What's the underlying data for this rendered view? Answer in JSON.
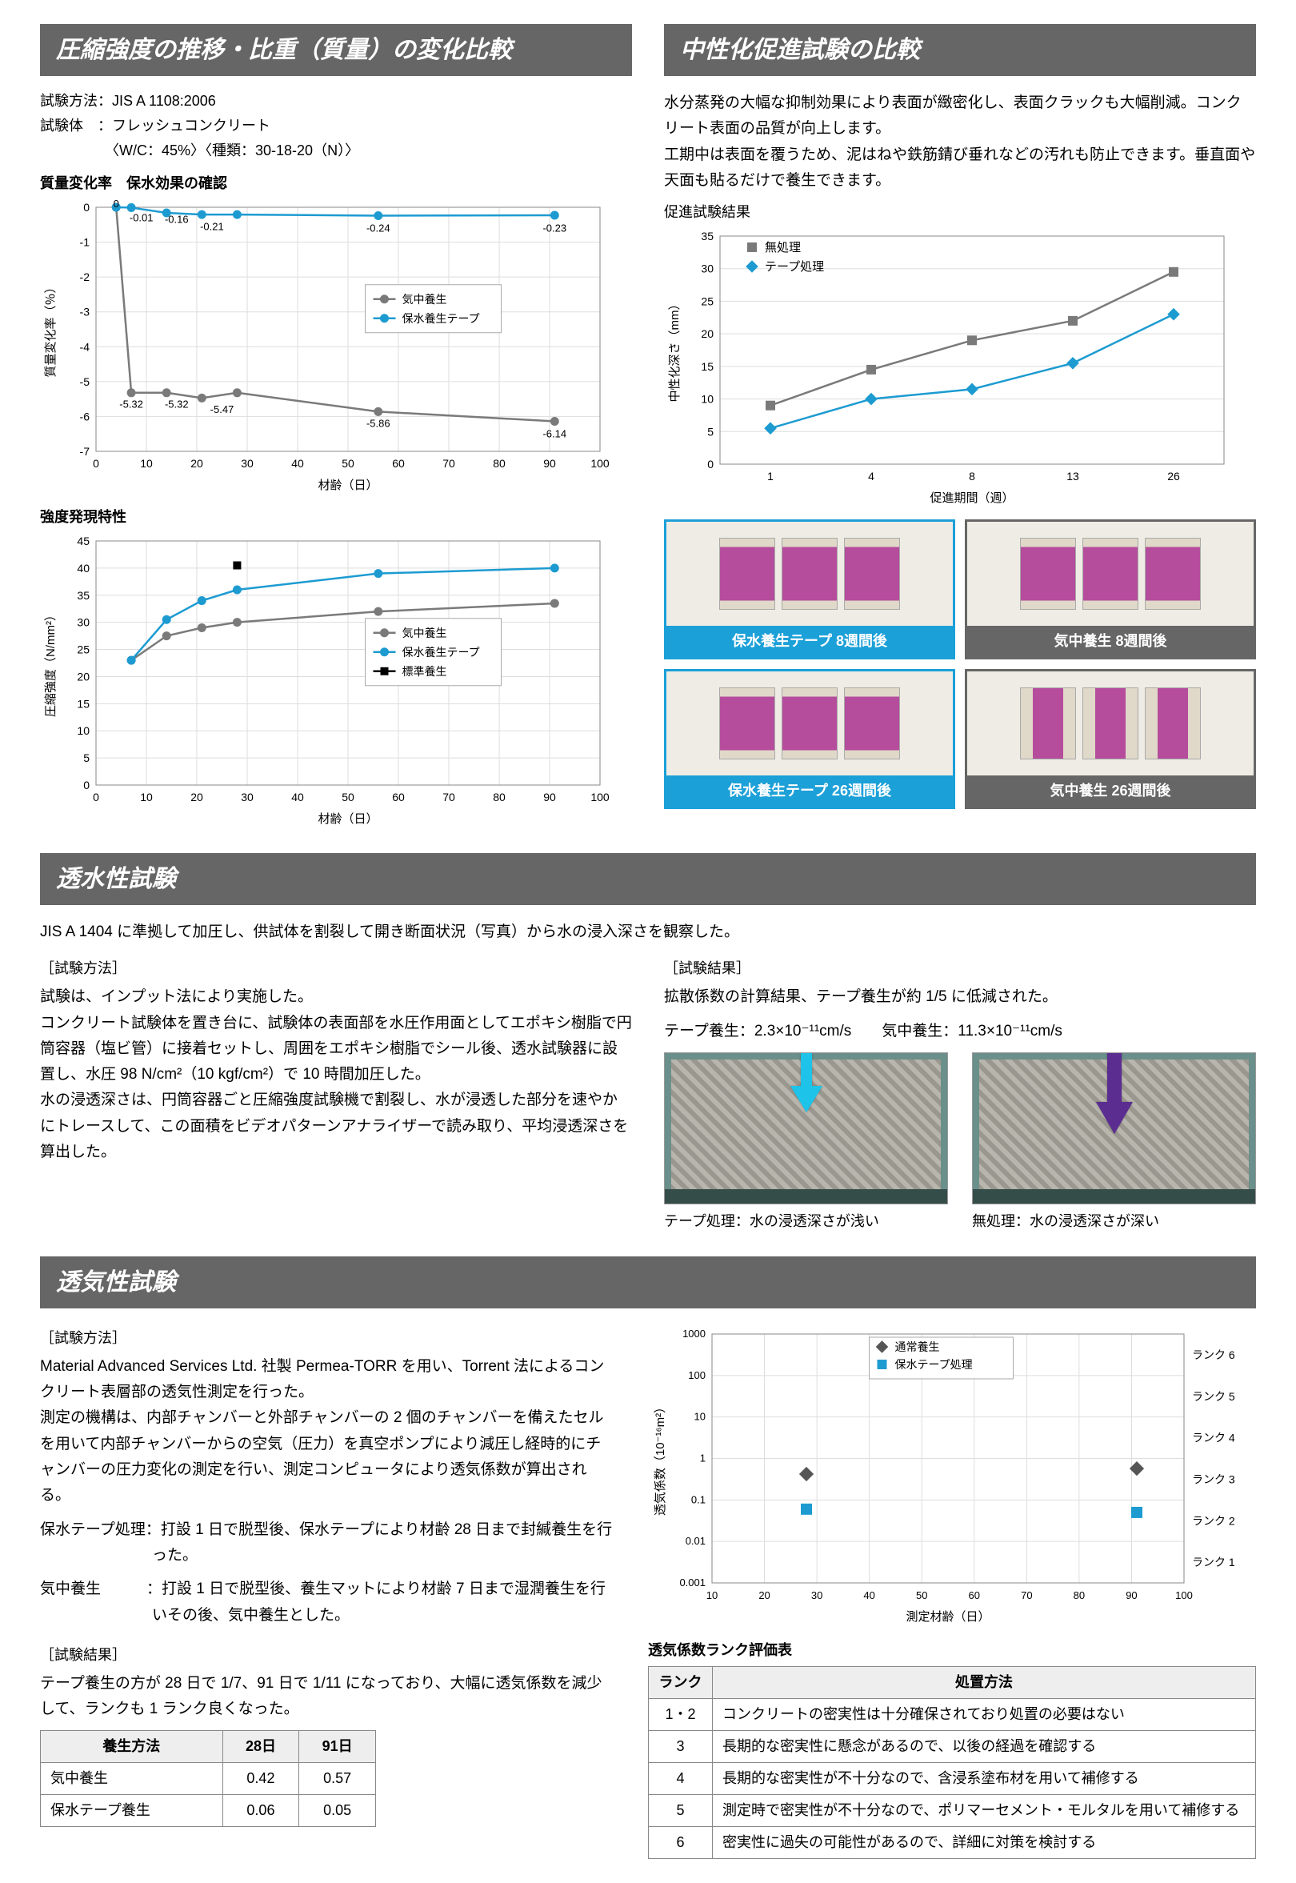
{
  "colors": {
    "header_bg": "#666666",
    "header_text": "#ffffff",
    "accent_blue": "#1ca0d8",
    "series_gray": "#7a7a7a",
    "series_blue": "#1d9bd1",
    "series_black": "#000000",
    "series_cyan": "#1dc3e8",
    "series_purple": "#5b2d91",
    "grid": "#cccccc",
    "axis": "#000000",
    "bg": "#ffffff"
  },
  "s1": {
    "header": "圧縮強度の推移・比重（質量）の変化比較",
    "info1": "試験方法：JIS A 1108:2006",
    "info2": "試験体　：フレッシュコンクリート",
    "info3": "　　　　　〈W/C：45%〉〈種類：30-18-20（N）〉",
    "chart_a": {
      "title": "質量変化率　保水効果の確認",
      "type": "line",
      "xlabel": "材齢（日）",
      "ylabel": "質量変化率（％）",
      "xlim": [
        0,
        100
      ],
      "ylim": [
        -7,
        0
      ],
      "xticks": [
        0,
        10,
        20,
        30,
        40,
        50,
        60,
        70,
        80,
        90,
        100
      ],
      "yticks": [
        0,
        -1,
        -2,
        -3,
        -4,
        -5,
        -6,
        -7
      ],
      "legend": [
        "気中養生",
        "保水養生テープ"
      ],
      "legend_pos": "right-mid",
      "series": {
        "air": {
          "x": [
            4,
            7,
            14,
            21,
            28,
            56,
            91
          ],
          "y": [
            0,
            -5.32,
            -5.32,
            -5.47,
            -5.32,
            -5.86,
            -6.14
          ],
          "color": "#7a7a7a",
          "marker": "circle"
        },
        "tape": {
          "x": [
            4,
            7,
            14,
            21,
            28,
            56,
            91
          ],
          "y": [
            0,
            -0.01,
            -0.16,
            -0.21,
            -0.21,
            -0.24,
            -0.23
          ],
          "color": "#1d9bd1",
          "marker": "circle"
        }
      },
      "data_labels": [
        {
          "x": 4,
          "y": 0,
          "t": "0"
        },
        {
          "x": 9,
          "y": -0.4,
          "t": "-0.01"
        },
        {
          "x": 16,
          "y": -0.45,
          "t": "-0.16"
        },
        {
          "x": 23,
          "y": -0.65,
          "t": "-0.21"
        },
        {
          "x": 56,
          "y": -0.7,
          "t": "-0.24"
        },
        {
          "x": 91,
          "y": -0.7,
          "t": "-0.23"
        },
        {
          "x": 7,
          "y": -5.75,
          "t": "-5.32"
        },
        {
          "x": 16,
          "y": -5.75,
          "t": "-5.32"
        },
        {
          "x": 25,
          "y": -5.9,
          "t": "-5.47"
        },
        {
          "x": 56,
          "y": -6.3,
          "t": "-5.86"
        },
        {
          "x": 91,
          "y": -6.6,
          "t": "-6.14"
        }
      ],
      "fontsize_label": 15,
      "fontsize_tick": 14
    },
    "chart_b": {
      "title": "強度発現特性",
      "type": "line",
      "xlabel": "材齢（日）",
      "ylabel": "圧縮強度（N/mm²）",
      "xlim": [
        0,
        100
      ],
      "ylim": [
        0,
        45
      ],
      "xticks": [
        0,
        10,
        20,
        30,
        40,
        50,
        60,
        70,
        80,
        90,
        100
      ],
      "yticks": [
        0,
        5,
        10,
        15,
        20,
        25,
        30,
        35,
        40,
        45
      ],
      "legend": [
        "気中養生",
        "保水養生テープ",
        "標準養生"
      ],
      "legend_pos": "right-mid",
      "series": {
        "air": {
          "x": [
            7,
            14,
            21,
            28,
            56,
            91
          ],
          "y": [
            23,
            27.5,
            29,
            30,
            32,
            33.5
          ],
          "color": "#7a7a7a",
          "marker": "circle"
        },
        "tape": {
          "x": [
            7,
            14,
            21,
            28,
            56,
            91
          ],
          "y": [
            23,
            30.5,
            34,
            36,
            39,
            40
          ],
          "color": "#1d9bd1",
          "marker": "circle"
        },
        "std": {
          "x": [
            28
          ],
          "y": [
            40.5
          ],
          "color": "#000000",
          "marker": "square"
        }
      },
      "fontsize_label": 15,
      "fontsize_tick": 14
    }
  },
  "s2": {
    "header": "中性化促進試験の比較",
    "para": "水分蒸発の大幅な抑制効果により表面が緻密化し、表面クラックも大幅削減。コンクリート表面の品質が向上します。\n工期中は表面を覆うため、泥はねや鉄筋錆び垂れなどの汚れも防止できます。垂直面や天面も貼るだけで養生できます。",
    "chart": {
      "title": "促進試験結果",
      "type": "line",
      "xlabel": "促進期間（週）",
      "ylabel": "中性化深さ（mm）",
      "ylim": [
        0,
        35
      ],
      "yticks": [
        0,
        5,
        10,
        15,
        20,
        25,
        30,
        35
      ],
      "x_categories": [
        "1",
        "4",
        "8",
        "13",
        "26"
      ],
      "legend": [
        "無処理",
        "テープ処理"
      ],
      "legend_markers": [
        "square-gray",
        "diamond-blue"
      ],
      "series": {
        "none": {
          "y": [
            9,
            14.5,
            19,
            22,
            29.5
          ],
          "color": "#7a7a7a",
          "marker": "square"
        },
        "tape": {
          "y": [
            5.5,
            10,
            11.5,
            15.5,
            23
          ],
          "color": "#1d9bd1",
          "marker": "diamond"
        }
      },
      "fontsize_label": 15,
      "fontsize_tick": 14
    },
    "samples": [
      {
        "caption": "保水養生テープ 8週間後",
        "color": "blue",
        "chips": 3,
        "style": "wide"
      },
      {
        "caption": "気中養生 8週間後",
        "color": "gray",
        "chips": 3,
        "style": "wide"
      },
      {
        "caption": "保水養生テープ 26週間後",
        "color": "blue",
        "chips": 3,
        "style": "wide"
      },
      {
        "caption": "気中養生 26週間後",
        "color": "gray",
        "chips": 3,
        "style": "narrow"
      }
    ]
  },
  "s3": {
    "header": "透水性試験",
    "intro": "JIS A 1404 に準拠して加圧し、供試体を割裂して開き断面状況（写真）から水の浸入深さを観察した。",
    "method_h": "［試験方法］",
    "method": "試験は、インプット法により実施した。\nコンクリート試験体を置き台に、試験体の表面部を水圧作用面としてエポキシ樹脂で円筒容器（塩ビ管）に接着セットし、周囲をエポキシ樹脂でシール後、透水試験器に設置し、水圧 98 N/cm²（10 kgf/cm²）で 10 時間加圧した。\n水の浸透深さは、円筒容器ごと圧縮強度試験機で割裂し、水が浸透した部分を速やかにトレースして、この面積をビデオパターンアナライザーで読み取り、平均浸透深さを算出した。",
    "result_h": "［試験結果］",
    "result1": "拡散係数の計算結果、テープ養生が約 1/5 に低減された。",
    "result2": "テープ養生：2.3×10⁻¹¹cm/s　　気中養生：11.3×10⁻¹¹cm/s",
    "img1_cap": "テープ処理：水の浸透深さが浅い",
    "img2_cap": "無処理：水の浸透深さが深い"
  },
  "s4": {
    "header": "透気性試験",
    "method_h": "［試験方法］",
    "method": "Material Advanced Services Ltd. 社製 Permea-TORR を用い、Torrent 法によるコンクリート表層部の透気性測定を行った。\n測定の機構は、内部チャンバーと外部チャンバーの 2 個のチャンバーを備えたセルを用いて内部チャンバーからの空気（圧力）を真空ポンプにより減圧し経時的にチャンバーの圧力変化の測定を行い、測定コンピュータにより透気係数が算出される。",
    "cond1": "保水テープ処理：打設 1 日で脱型後、保水テープにより材齢 28 日まで封緘養生を行った。",
    "cond2": "気中養生　　　：打設 1 日で脱型後、養生マットにより材齢 7 日まで湿潤養生を行いその後、気中養生とした。",
    "result_h": "［試験結果］",
    "result": "テープ養生の方が 28 日で 1/7、91 日で 1/11 になっており、大幅に透気係数を減少して、ランクも 1 ランク良くなった。",
    "table1": {
      "headers": [
        "養生方法",
        "28日",
        "91日"
      ],
      "rows": [
        [
          "気中養生",
          "0.42",
          "0.57"
        ],
        [
          "保水テープ養生",
          "0.06",
          "0.05"
        ]
      ]
    },
    "chart": {
      "type": "scatter-log",
      "xlabel": "測定材齢（日）",
      "ylabel": "透気係数（10⁻¹⁶m²）",
      "xlim": [
        10,
        100
      ],
      "xticks": [
        10,
        20,
        30,
        40,
        50,
        60,
        70,
        80,
        90,
        100
      ],
      "ylog": true,
      "ylim": [
        0.001,
        1000
      ],
      "yticks": [
        0.001,
        0.01,
        0.1,
        1,
        10,
        100,
        1000
      ],
      "ytick_labels": [
        "0.001",
        "0.01",
        "0.1",
        "1",
        "10",
        "100",
        "1000"
      ],
      "legend": [
        "通常養生",
        "保水テープ処理"
      ],
      "legend_markers": [
        "diamond-gray",
        "square-blue"
      ],
      "ranks": [
        "ランク 6",
        "ランク 5",
        "ランク 4",
        "ランク 3",
        "ランク 2",
        "ランク 1"
      ],
      "series": {
        "normal": {
          "x": [
            28,
            91
          ],
          "y": [
            0.42,
            0.57
          ],
          "color": "#555555",
          "marker": "diamond"
        },
        "tape": {
          "x": [
            28,
            91
          ],
          "y": [
            0.06,
            0.05
          ],
          "color": "#1d9bd1",
          "marker": "square"
        }
      },
      "fontsize_label": 15,
      "fontsize_tick": 13
    },
    "table2_title": "透気係数ランク評価表",
    "table2": {
      "headers": [
        "ランク",
        "処置方法"
      ],
      "rows": [
        [
          "1・2",
          "コンクリートの密実性は十分確保されており処置の必要はない"
        ],
        [
          "3",
          "長期的な密実性に懸念があるので、以後の経過を確認する"
        ],
        [
          "4",
          "長期的な密実性が不十分なので、含浸系塗布材を用いて補修する"
        ],
        [
          "5",
          "測定時で密実性が不十分なので、ポリマーセメント・モルタルを用いて補修する"
        ],
        [
          "6",
          "密実性に過失の可能性があるので、詳細に対策を検討する"
        ]
      ]
    }
  }
}
